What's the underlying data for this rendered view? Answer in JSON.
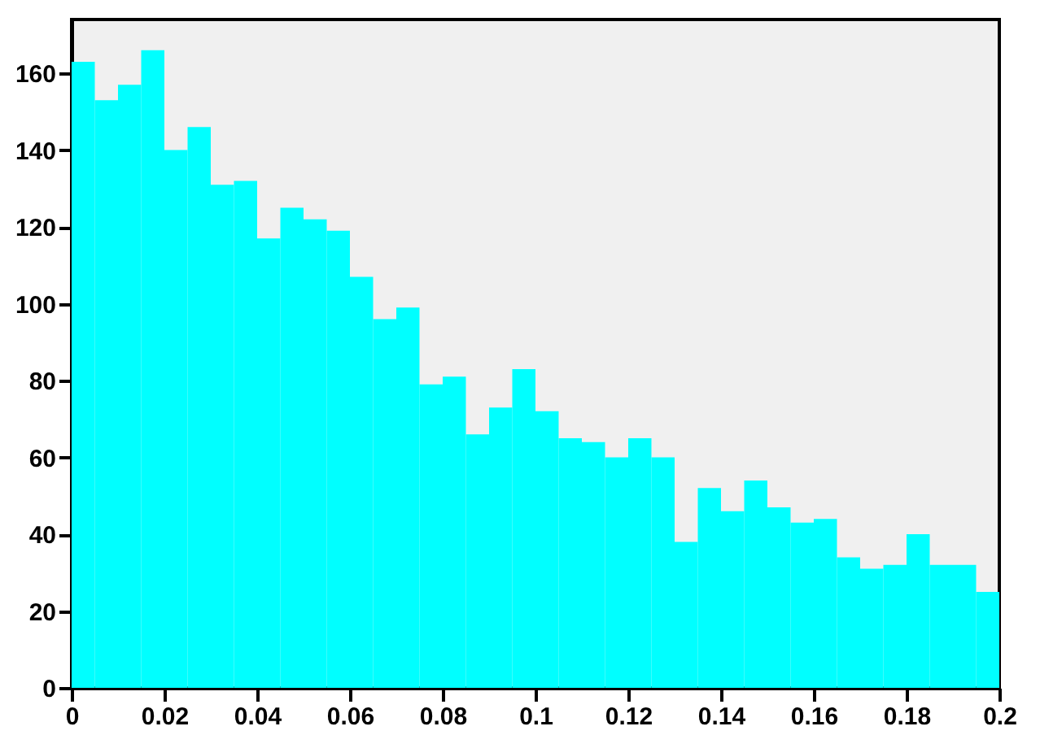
{
  "chart_data": {
    "type": "histogram",
    "color": "#00ffff",
    "bins": [
      0,
      0.005,
      0.01,
      0.015,
      0.02,
      0.025,
      0.03,
      0.035,
      0.04,
      0.045,
      0.05,
      0.055,
      0.06,
      0.065,
      0.07,
      0.075,
      0.08,
      0.085,
      0.09,
      0.095,
      0.1,
      0.105,
      0.11,
      0.115,
      0.12,
      0.125,
      0.13,
      0.135,
      0.14,
      0.145,
      0.15,
      0.155,
      0.16,
      0.165,
      0.17,
      0.175,
      0.18,
      0.185,
      0.19,
      0.195,
      0.2
    ],
    "values": [
      163,
      153,
      157,
      166,
      140,
      146,
      131,
      132,
      117,
      125,
      122,
      119,
      107,
      96,
      99,
      79,
      81,
      66,
      73,
      83,
      72,
      65,
      64,
      60,
      65,
      60,
      38,
      52,
      46,
      54,
      47,
      43,
      44,
      34,
      31,
      32,
      40,
      32,
      32,
      25
    ],
    "xlim": [
      0,
      0.2
    ],
    "xticks": [
      0,
      0.02,
      0.04,
      0.06,
      0.08,
      0.1,
      0.12,
      0.14,
      0.16,
      0.18,
      0.2
    ],
    "ylim": [
      0,
      174
    ],
    "yticks": [
      0,
      20,
      40,
      60,
      80,
      100,
      120,
      140,
      160
    ],
    "grid": false
  }
}
